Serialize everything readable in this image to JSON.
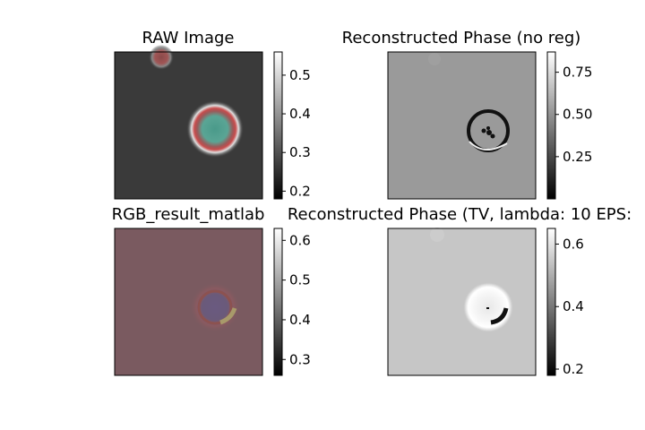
{
  "chart_data": [
    {
      "type": "heatmap",
      "title": "RAW Image",
      "colorbar": {
        "ticks": [
          0.2,
          0.3,
          0.4,
          0.5
        ],
        "range": [
          0.18,
          0.56
        ]
      },
      "colormap": "gray"
    },
    {
      "type": "heatmap",
      "title": "Reconstructed Phase (no reg)",
      "colorbar": {
        "ticks": [
          0.25,
          0.5,
          0.75
        ],
        "tick_labels": [
          "0.25",
          "0.50",
          "0.75"
        ],
        "range": [
          0.0,
          0.87
        ]
      },
      "colormap": "gray"
    },
    {
      "type": "heatmap",
      "title": "RGB_result_matlab",
      "colorbar": {
        "ticks": [
          0.3,
          0.4,
          0.5,
          0.6
        ],
        "range": [
          0.26,
          0.63
        ]
      },
      "colormap": "gray"
    },
    {
      "type": "heatmap",
      "title": "Reconstructed Phase (TV, lambda: 10 EPS:",
      "colorbar": {
        "ticks": [
          0.2,
          0.4,
          0.6
        ],
        "range": [
          0.18,
          0.65
        ]
      },
      "colormap": "gray"
    }
  ]
}
